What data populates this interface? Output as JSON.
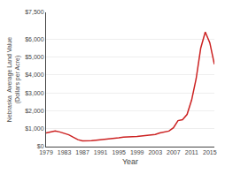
{
  "chart_data": {
    "type": "line",
    "xlabel": "Year",
    "ylabel": "Nebraska  Average Land Value\n(Dollars per Acre)",
    "x": [
      1979,
      1980,
      1981,
      1982,
      1983,
      1984,
      1985,
      1986,
      1987,
      1988,
      1989,
      1990,
      1991,
      1992,
      1993,
      1994,
      1995,
      1996,
      1997,
      1998,
      1999,
      2000,
      2001,
      2002,
      2003,
      2004,
      2005,
      2006,
      2007,
      2008,
      2009,
      2010,
      2011,
      2012,
      2013,
      2014,
      2015,
      2016
    ],
    "values": [
      760,
      835,
      880,
      820,
      740,
      660,
      520,
      390,
      320,
      310,
      330,
      360,
      380,
      400,
      430,
      460,
      490,
      530,
      560,
      560,
      570,
      600,
      620,
      640,
      680,
      760,
      810,
      870,
      1050,
      1450,
      1500,
      1800,
      2600,
      3800,
      5500,
      6400,
      5800,
      4600
    ],
    "color": "#cc2222",
    "xlim": [
      1979,
      2016
    ],
    "xticks": [
      1979,
      1983,
      1987,
      1991,
      1995,
      1999,
      2003,
      2007,
      2011,
      2015
    ],
    "ylim": [
      0,
      7500
    ],
    "yticks": [
      {
        "value": 0,
        "label": "$0"
      },
      {
        "value": 1000,
        "label": "$1,000"
      },
      {
        "value": 2000,
        "label": "$2,000"
      },
      {
        "value": 3000,
        "label": "$3,000"
      },
      {
        "value": 4000,
        "label": "$4,000"
      },
      {
        "value": 5000,
        "label": "$5,000"
      },
      {
        "value": 6000,
        "label": "$6,000"
      },
      {
        "value": 7500,
        "label": "$7,500"
      }
    ],
    "grid": true
  }
}
